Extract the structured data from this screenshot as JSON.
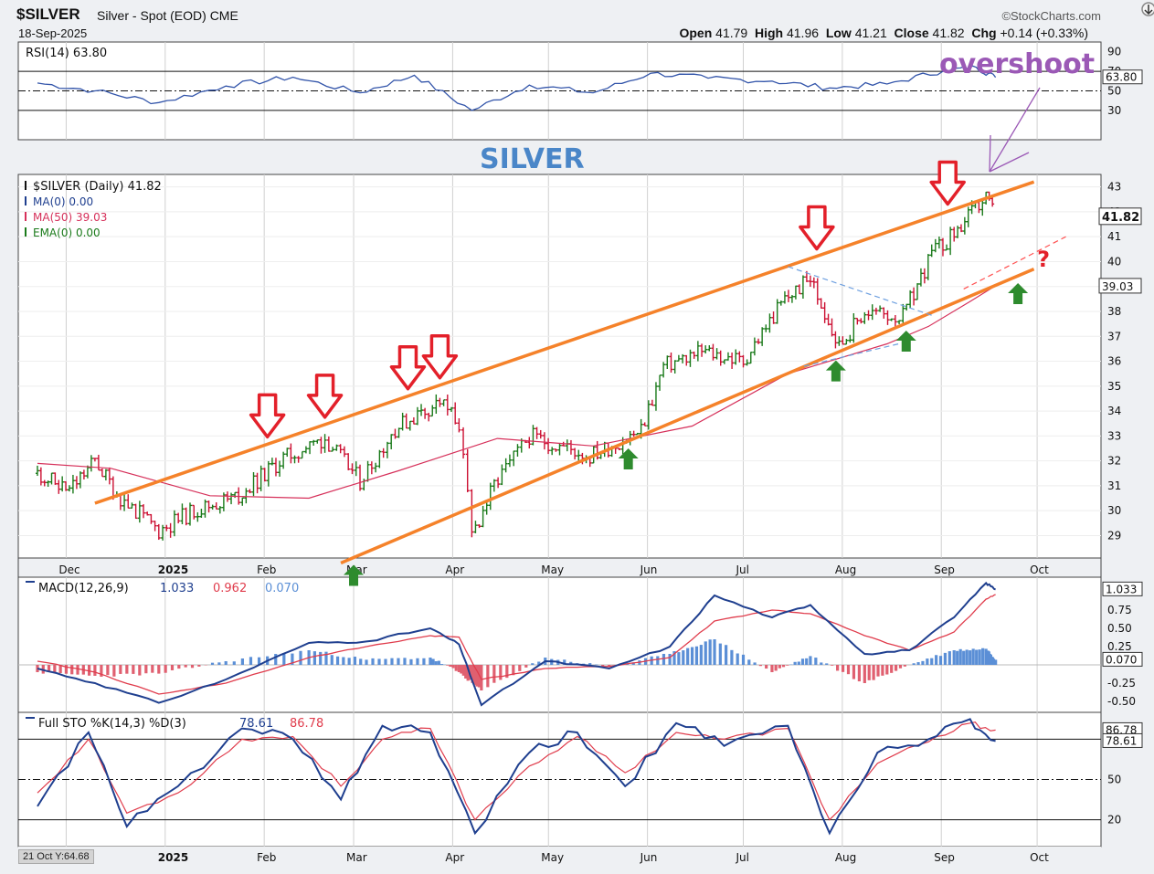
{
  "header": {
    "symbol": "$SILVER",
    "name": "Silver - Spot (EOD) CME",
    "date": "18-Sep-2025",
    "brand": "©StockCharts.com",
    "open_label": "Open",
    "open": "41.79",
    "high_label": "High",
    "high": "41.96",
    "low_label": "Low",
    "low": "41.21",
    "close_label": "Close",
    "close": "41.82",
    "chg_label": "Chg",
    "chg": "+0.14 (+0.33%)"
  },
  "colors": {
    "orange": "#f5822a",
    "price_up": "#1a7a1a",
    "price_down": "#cc1133",
    "ma50": "#d6305a",
    "macd": "#1f3f8f",
    "signal": "#e03c4c",
    "hist_pos": "#5b8fd6",
    "hist_neg": "#e06070",
    "rsi": "#3355aa",
    "overshoot": "#9b59b6",
    "title_blue": "#4a86c8",
    "arrow_red": "#e3202a",
    "arrow_green": "#2e8b2e"
  },
  "x_axis": {
    "months": [
      "Dec",
      "2025",
      "Feb",
      "Mar",
      "Apr",
      "May",
      "Jun",
      "Jul",
      "Aug",
      "Sep",
      "Oct"
    ]
  },
  "bottom_readout": "21 Oct Y:64.68",
  "chart_data": [
    {
      "type": "line",
      "panel": "rsi",
      "legend": "RSI(14) 63.80",
      "last_value_tag": "63.80",
      "ylim": [
        0,
        100
      ],
      "ticks": [
        "90",
        "70",
        "50",
        "30"
      ],
      "grid_levels": [
        70,
        50,
        30
      ],
      "dates": [
        "2024-11-22",
        "2024-12-10",
        "2024-12-30",
        "2025-01-20",
        "2025-02-10",
        "2025-03-03",
        "2025-03-20",
        "2025-04-07",
        "2025-04-25",
        "2025-05-15",
        "2025-06-02",
        "2025-06-20",
        "2025-07-10",
        "2025-07-28",
        "2025-08-15",
        "2025-09-02",
        "2025-09-12",
        "2025-09-18"
      ],
      "values": [
        58,
        50,
        38,
        55,
        64,
        48,
        66,
        30,
        56,
        48,
        68,
        63,
        60,
        53,
        57,
        71,
        74,
        63.8
      ]
    },
    {
      "type": "bar",
      "panel": "price",
      "title": "SILVER",
      "legend": [
        "$SILVER (Daily) 41.82",
        "MA(0) 0.00",
        "MA(50) 39.03",
        "EMA(0) 0.00"
      ],
      "last_value_tag": "41.82",
      "ma50_tag": "39.03",
      "ylim": [
        28.1,
        43.5
      ],
      "ticks": [
        "43",
        "42",
        "41",
        "40",
        "39",
        "38",
        "37",
        "36",
        "35",
        "34",
        "33",
        "32",
        "31",
        "30",
        "29"
      ],
      "price_path": {
        "dates": [
          "2024-11-22",
          "2024-12-02",
          "2024-12-10",
          "2024-12-18",
          "2024-12-30",
          "2025-01-10",
          "2025-01-24",
          "2025-02-07",
          "2025-02-20",
          "2025-03-03",
          "2025-03-14",
          "2025-03-28",
          "2025-04-03",
          "2025-04-07",
          "2025-04-14",
          "2025-04-25",
          "2025-05-14",
          "2025-05-30",
          "2025-06-06",
          "2025-06-18",
          "2025-07-01",
          "2025-07-14",
          "2025-07-22",
          "2025-07-31",
          "2025-08-08",
          "2025-08-20",
          "2025-08-29",
          "2025-09-05",
          "2025-09-15",
          "2025-09-18"
        ],
        "closes": [
          31.5,
          30.8,
          32.0,
          30.5,
          29.2,
          30.0,
          30.6,
          32.1,
          32.9,
          31.2,
          33.3,
          34.4,
          33.5,
          29.0,
          31.0,
          33.0,
          32.2,
          33.2,
          35.8,
          36.4,
          36.0,
          38.5,
          39.3,
          36.6,
          38.0,
          37.8,
          40.3,
          41.1,
          42.6,
          41.82
        ]
      },
      "ma50": {
        "dates": [
          "2024-11-22",
          "2024-12-15",
          "2025-01-15",
          "2025-02-15",
          "2025-03-15",
          "2025-04-15",
          "2025-05-15",
          "2025-06-15",
          "2025-07-15",
          "2025-08-15",
          "2025-08-28",
          "2025-09-10",
          "2025-09-18"
        ],
        "values": [
          31.9,
          31.7,
          30.6,
          30.5,
          31.6,
          32.9,
          32.6,
          33.4,
          35.5,
          36.7,
          37.4,
          38.4,
          39.03
        ]
      },
      "upper_channel": {
        "dates": [
          "2024-12-10",
          "2025-09-30"
        ],
        "values": [
          30.3,
          43.2
        ]
      },
      "lower_channel": {
        "dates": [
          "2025-02-25",
          "2025-09-30"
        ],
        "values": [
          27.9,
          39.7
        ]
      },
      "red_arrows_dates": [
        "2025-02-02",
        "2025-02-20",
        "2025-03-18",
        "2025-03-28",
        "2025-07-24",
        "2025-09-03"
      ],
      "green_arrows_dates": [
        "2025-03-01",
        "2025-05-26",
        "2025-07-30",
        "2025-08-21",
        "2025-09-25"
      ],
      "annotations": [
        "overshoot",
        "?"
      ]
    },
    {
      "type": "line",
      "panel": "macd",
      "legend": "MACD(12,26,9)",
      "macd_value": "1.033",
      "signal_value": "0.962",
      "hist_value": "0.070",
      "tags": [
        "1.033",
        "0.070"
      ],
      "ylim": [
        -0.65,
        1.2
      ],
      "ticks": [
        "0.75",
        "0.50",
        "0.25",
        "-0.25",
        "-0.50"
      ],
      "dates": [
        "2024-11-22",
        "2024-12-10",
        "2024-12-30",
        "2025-01-20",
        "2025-02-15",
        "2025-03-05",
        "2025-03-25",
        "2025-04-03",
        "2025-04-10",
        "2025-04-30",
        "2025-05-20",
        "2025-06-08",
        "2025-06-22",
        "2025-07-10",
        "2025-07-22",
        "2025-08-08",
        "2025-08-22",
        "2025-09-05",
        "2025-09-15",
        "2025-09-18"
      ],
      "macd": [
        -0.05,
        -0.25,
        -0.52,
        -0.2,
        0.3,
        0.32,
        0.5,
        0.28,
        -0.55,
        0.05,
        -0.05,
        0.25,
        0.95,
        0.65,
        0.82,
        0.15,
        0.2,
        0.65,
        1.12,
        1.033
      ],
      "signal": [
        0.05,
        -0.1,
        -0.4,
        -0.25,
        0.1,
        0.25,
        0.4,
        0.38,
        -0.2,
        -0.05,
        -0.02,
        0.1,
        0.6,
        0.75,
        0.7,
        0.4,
        0.2,
        0.45,
        0.9,
        0.962
      ],
      "histogram": [
        -0.1,
        -0.15,
        -0.12,
        0.05,
        0.2,
        0.07,
        0.1,
        -0.1,
        -0.35,
        0.1,
        -0.03,
        0.15,
        0.35,
        -0.1,
        0.12,
        -0.25,
        0.0,
        0.2,
        0.22,
        0.07
      ]
    },
    {
      "type": "line",
      "panel": "sto",
      "legend": "Full STO %K(14,3) %D(3)",
      "k_value": "78.61",
      "d_value": "86.78",
      "tags": [
        "86.78",
        "78.61"
      ],
      "ylim": [
        0,
        100
      ],
      "ticks": [
        "80",
        "50",
        "20"
      ],
      "grid_levels": [
        80,
        50,
        20
      ],
      "dates": [
        "2024-11-22",
        "2024-12-08",
        "2024-12-20",
        "2025-01-05",
        "2025-01-25",
        "2025-02-10",
        "2025-02-25",
        "2025-03-10",
        "2025-03-25",
        "2025-04-08",
        "2025-04-25",
        "2025-05-10",
        "2025-05-25",
        "2025-06-10",
        "2025-06-25",
        "2025-07-15",
        "2025-07-28",
        "2025-08-12",
        "2025-08-28",
        "2025-09-10",
        "2025-09-18"
      ],
      "k": [
        30,
        85,
        15,
        45,
        88,
        80,
        35,
        90,
        85,
        10,
        70,
        85,
        45,
        92,
        75,
        90,
        10,
        70,
        80,
        95,
        78.61
      ],
      "d": [
        40,
        80,
        25,
        40,
        80,
        82,
        45,
        80,
        88,
        20,
        60,
        82,
        55,
        85,
        80,
        88,
        20,
        62,
        78,
        92,
        86.78
      ]
    }
  ]
}
